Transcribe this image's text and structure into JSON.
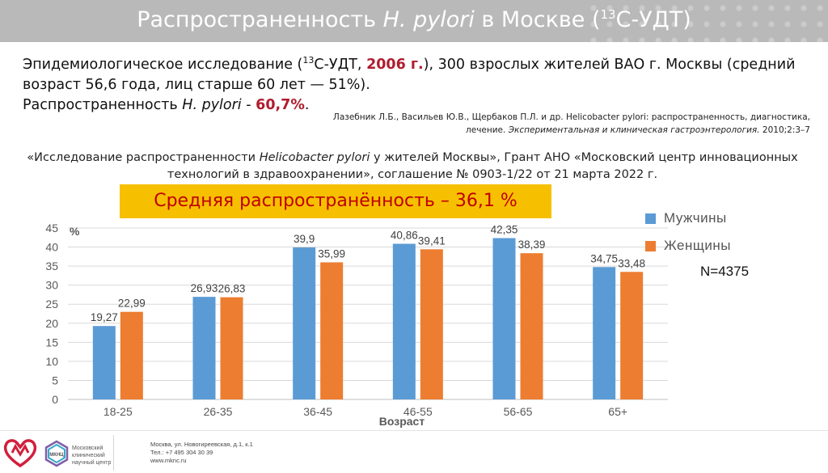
{
  "header": {
    "title_pre": "Распространенность ",
    "title_italic": "H. pylori",
    "title_mid": " в Москве (",
    "title_sup": "13",
    "title_post": "С-УДТ)"
  },
  "intro": {
    "line1_a": "Эпидемиологическое исследование (",
    "line1_sup": "13",
    "line1_b": "С-УДТ, ",
    "line1_year": "2006 г.",
    "line1_c": "), 300 взрослых жителей ВАО г. Москвы (средний",
    "line2": "возраст 56,6 года, лиц старше 60 лет — 51%).",
    "line3_a": "Распространенность ",
    "line3_italic": "H. pylori",
    "line3_b": " - ",
    "line3_value": "60,7%",
    "line3_end": "."
  },
  "reference": {
    "authors": "Лазебник Л.Б., Васильев Ю.В., Щербаков П.Л. и др. Helicobacter pylori: распространенность, диагностика, лечение. ",
    "journal": "Экспериментальная и клиническая гастроэнтерология.",
    "details": " 2010;2:3–7"
  },
  "grant": {
    "part1": "«Исследование распространенности ",
    "italic": "Helicobacter pylori",
    "part2": "  у жителей Москвы», Грант АНО «Московский центр инновационных",
    "line2": "технологий в здравоохранении», соглашение № 0903-1/22 от 21 марта 2022 г."
  },
  "banner": {
    "text": "Средняя распространённость – 36,1 %"
  },
  "sample": {
    "text": "N=4375"
  },
  "chart_data": {
    "type": "bar",
    "categories": [
      "18-25",
      "26-35",
      "36-45",
      "46-55",
      "56-65",
      "65+"
    ],
    "series": [
      {
        "name": "Мужчины",
        "color": "#5b9bd5",
        "values": [
          19.27,
          26.93,
          39.9,
          40.86,
          42.35,
          34.75
        ],
        "labels": [
          "19,27",
          "26,93",
          "39,9",
          "40,86",
          "42,35",
          "34,75"
        ]
      },
      {
        "name": "Женщины",
        "color": "#ed7d31",
        "values": [
          22.99,
          26.83,
          35.99,
          39.41,
          38.39,
          33.48
        ],
        "labels": [
          "22,99",
          "26,83",
          "35,99",
          "39,41",
          "38,39",
          "33,48"
        ]
      }
    ],
    "ylim": [
      0,
      45
    ],
    "yticks": [
      0,
      5,
      10,
      15,
      20,
      25,
      30,
      35,
      40,
      45
    ],
    "ylabel": "%",
    "xlabel": "Возраст",
    "legend_position": "right",
    "grid": true
  },
  "footer": {
    "logo_text": "Московский клинический научный центр",
    "logo_abbr": "МКНЦ",
    "address": "Москва, ул. Новогиреевская, д.1, к.1",
    "phone": "Тел.: +7 495 304 30 39",
    "website": "www.mknc.ru"
  }
}
